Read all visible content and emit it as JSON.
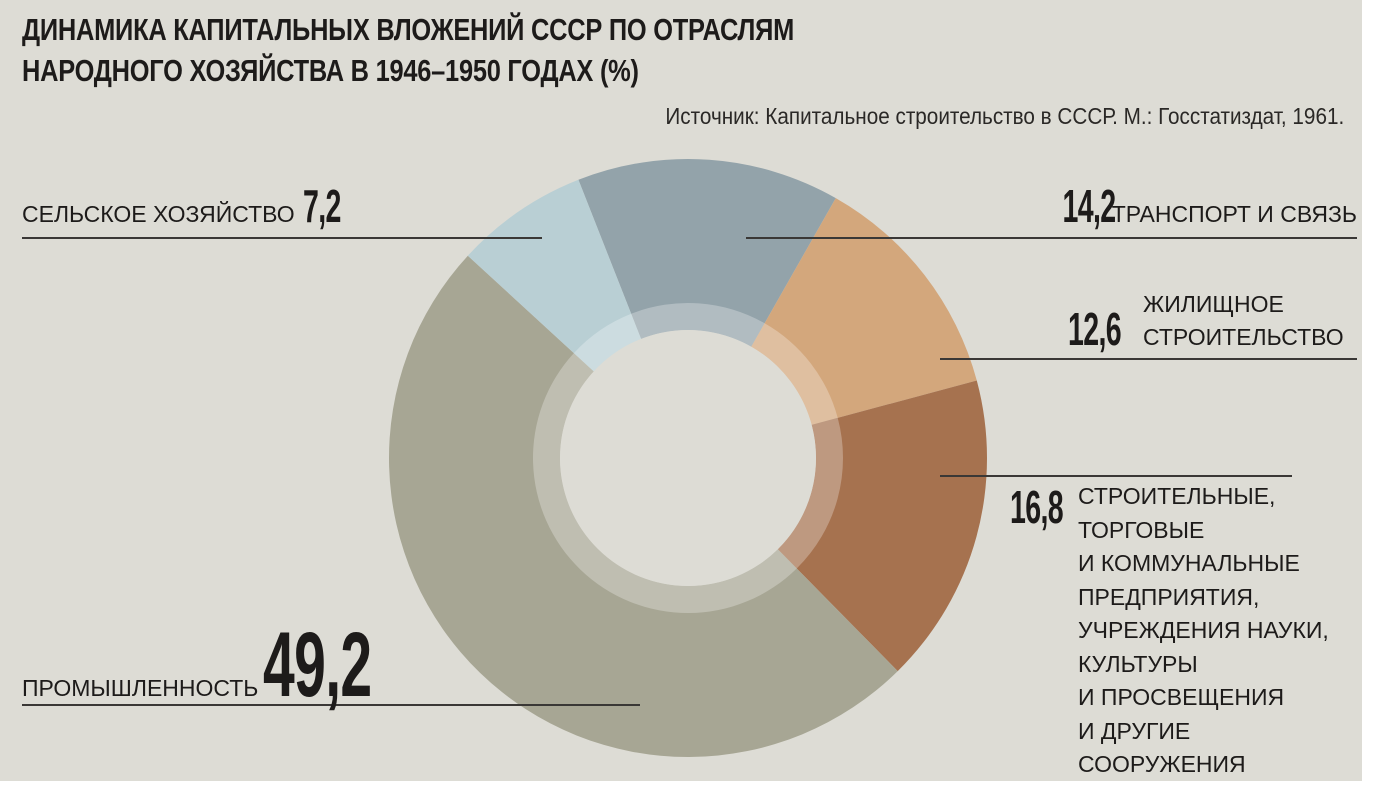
{
  "title_lines": [
    "ДИНАМИКА КАПИТАЛЬНЫХ ВЛОЖЕНИЙ СССР ПО ОТРАСЛЯМ",
    "НАРОДНОГО ХОЗЯЙСТВА В 1946–1950 ГОДАХ (%)"
  ],
  "source": "Источник: Капитальное строительство в СССР. М.: Госстатиздат, 1961.",
  "chart_data": {
    "type": "pie",
    "subtype": "donut",
    "title": "ДИНАМИКА КАПИТАЛЬНЫХ ВЛОЖЕНИЙ СССР ПО ОТРАСЛЯМ НАРОДНОГО ХОЗЯЙСТВА В 1946–1950 ГОДАХ (%)",
    "unit": "%",
    "slices": [
      {
        "label": "ТРАНСПОРТ И СВЯЗЬ",
        "value": 14.2,
        "value_label": "14,2",
        "color": "#93a3aa"
      },
      {
        "label": "ЖИЛИЩНОЕ СТРОИТЕЛЬСТВО",
        "label_lines": [
          "ЖИЛИЩНОЕ",
          "СТРОИТЕЛЬСТВО"
        ],
        "value": 12.6,
        "value_label": "12,6",
        "color": "#d3a77c"
      },
      {
        "label": "СТРОИТЕЛЬНЫЕ, ТОРГОВЫЕ И КОММУНАЛЬНЫЕ ПРЕДПРИЯТИЯ, УЧРЕЖДЕНИЯ НАУКИ, КУЛЬТУРЫ И ПРОСВЕЩЕНИЯ И ДРУГИЕ СООРУЖЕНИЯ",
        "label_lines": [
          "СТРОИТЕЛЬНЫЕ,",
          "ТОРГОВЫЕ",
          "И КОММУНАЛЬНЫЕ",
          "ПРЕДПРИЯТИЯ,",
          "УЧРЕЖДЕНИЯ НАУКИ,",
          "КУЛЬТУРЫ",
          "И ПРОСВЕЩЕНИЯ",
          "И ДРУГИЕ",
          "СООРУЖЕНИЯ"
        ],
        "value": 16.8,
        "value_label": "16,8",
        "color": "#a6724f"
      },
      {
        "label": "ПРОМЫШЛЕННОСТЬ",
        "value": 49.2,
        "value_label": "49,2",
        "color": "#a7a694"
      },
      {
        "label": "СЕЛЬСКОЕ ХОЗЯЙСТВО",
        "value": 7.2,
        "value_label": "7,2",
        "color": "#b9cfd4"
      }
    ],
    "background_color": "#dddcd5"
  }
}
